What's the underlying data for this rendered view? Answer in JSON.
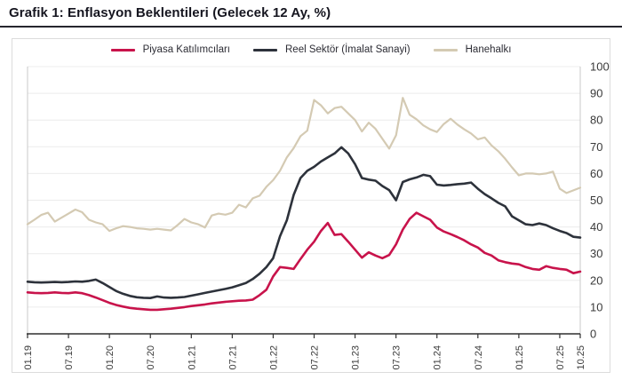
{
  "page": {
    "title": "Grafik 1: Enflasyon Beklentileri (Gelecek 12 Ay, %)"
  },
  "colors": {
    "accent_red": "#c8134b",
    "accent_dark": "#2d323b",
    "accent_beige": "#d4cab3",
    "grid": "#ececec",
    "frame": "#c9c9c9",
    "axis": "#2f2f2f",
    "tick_text": "#3a3a3a",
    "card_border": "#dcdcdc"
  },
  "chart_data": {
    "type": "line",
    "title": "Grafik 1: Enflasyon Beklentileri (Gelecek 12 Ay, %)",
    "x_unit": "month",
    "x_start": "01.2019",
    "x_end": "10.2025",
    "n_points": 82,
    "x_tick_labels": [
      "01.19",
      "07.19",
      "01.20",
      "07.20",
      "01.21",
      "07.21",
      "01.22",
      "07.22",
      "01.23",
      "07.23",
      "01.24",
      "07.24",
      "01.25",
      "07.25",
      "10.25"
    ],
    "x_tick_month_index": [
      0,
      6,
      12,
      18,
      24,
      30,
      36,
      42,
      48,
      54,
      60,
      66,
      72,
      78,
      81
    ],
    "ylim": [
      0,
      100
    ],
    "y_ticks": [
      0,
      10,
      20,
      30,
      40,
      50,
      60,
      70,
      80,
      90,
      100
    ],
    "y_tick_labels": [
      "0",
      "10",
      "20",
      "30",
      "40",
      "50",
      "60",
      "70",
      "80",
      "90",
      "100"
    ],
    "y_axis_side": "right",
    "grid": "horizontal",
    "legend_position": "top-center",
    "series": [
      {
        "name": "Piyasa Katılımcıları",
        "color": "#c8134b",
        "width": 2.6,
        "values": [
          15.5,
          15.3,
          15.2,
          15.3,
          15.5,
          15.3,
          15.2,
          15.5,
          15.2,
          14.5,
          13.6,
          12.6,
          11.6,
          10.8,
          10.2,
          9.7,
          9.4,
          9.2,
          9.0,
          9.0,
          9.2,
          9.4,
          9.7,
          10.0,
          10.4,
          10.7,
          11.0,
          11.4,
          11.7,
          12.0,
          12.2,
          12.4,
          12.5,
          12.8,
          14.5,
          16.5,
          21.5,
          25.0,
          24.7,
          24.3,
          28.0,
          31.5,
          34.5,
          38.5,
          41.5,
          37.0,
          37.3,
          34.5,
          31.5,
          28.5,
          30.5,
          29.3,
          28.3,
          29.5,
          33.5,
          39.0,
          43.0,
          45.3,
          44.0,
          42.7,
          39.8,
          38.3,
          37.3,
          36.2,
          35.0,
          33.5,
          32.3,
          30.3,
          29.3,
          27.5,
          26.8,
          26.3,
          26.0,
          25.0,
          24.3,
          24.0,
          25.3,
          24.7,
          24.3,
          24.0,
          22.7,
          23.3
        ]
      },
      {
        "name": "Reel Sektör (İmalat Sanayi)",
        "color": "#2d323b",
        "width": 2.6,
        "values": [
          19.5,
          19.3,
          19.2,
          19.3,
          19.4,
          19.3,
          19.4,
          19.6,
          19.5,
          19.8,
          20.3,
          19.0,
          17.5,
          16.0,
          15.0,
          14.2,
          13.7,
          13.5,
          13.4,
          14.0,
          13.6,
          13.5,
          13.6,
          13.8,
          14.3,
          14.8,
          15.3,
          15.8,
          16.3,
          16.8,
          17.4,
          18.2,
          19.0,
          20.5,
          22.5,
          25.0,
          28.3,
          36.5,
          42.5,
          52.0,
          58.3,
          61.0,
          62.5,
          64.5,
          66.0,
          67.5,
          69.8,
          67.5,
          63.5,
          58.3,
          57.7,
          57.3,
          55.3,
          53.8,
          50.0,
          56.8,
          57.8,
          58.5,
          59.5,
          59.0,
          55.8,
          55.5,
          55.7,
          56.0,
          56.2,
          56.6,
          54.3,
          52.3,
          50.7,
          49.0,
          47.7,
          44.0,
          42.5,
          41.0,
          40.7,
          41.3,
          40.7,
          39.5,
          38.5,
          37.7,
          36.3,
          36.0
        ]
      },
      {
        "name": "Hanehalkı",
        "color": "#d4cab3",
        "width": 2.2,
        "values": [
          41.0,
          42.7,
          44.5,
          45.3,
          42.0,
          43.5,
          45.0,
          46.5,
          45.5,
          42.7,
          41.7,
          41.0,
          38.5,
          39.5,
          40.3,
          40.0,
          39.5,
          39.3,
          39.0,
          39.3,
          39.0,
          38.7,
          40.7,
          43.0,
          41.7,
          41.0,
          39.8,
          44.3,
          45.0,
          44.6,
          45.3,
          48.3,
          47.3,
          50.7,
          51.7,
          55.0,
          57.5,
          61.0,
          66.0,
          69.5,
          74.0,
          76.0,
          87.5,
          85.5,
          82.5,
          84.5,
          85.0,
          82.5,
          80.0,
          75.7,
          79.0,
          76.7,
          73.0,
          69.3,
          74.3,
          88.3,
          82.0,
          80.3,
          78.0,
          76.5,
          75.5,
          78.5,
          80.5,
          78.3,
          76.5,
          75.0,
          72.8,
          73.5,
          70.5,
          68.3,
          65.5,
          62.3,
          59.3,
          60.0,
          60.0,
          59.7,
          60.0,
          60.7,
          54.3,
          52.7,
          53.7,
          54.7
        ]
      }
    ]
  }
}
